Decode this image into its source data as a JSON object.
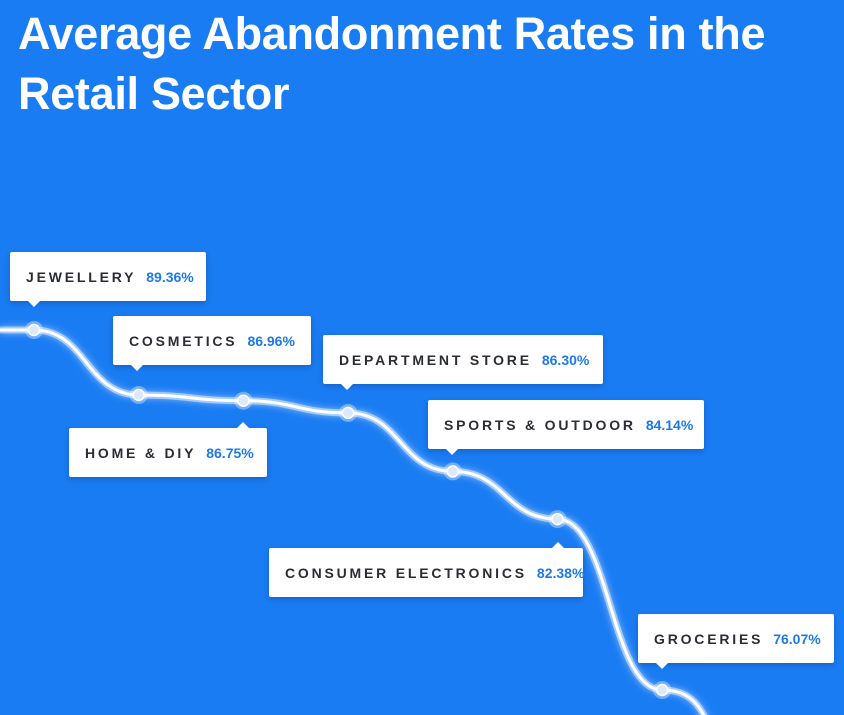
{
  "header": {
    "title": "Average Abandonment Rates in the Retail Sector"
  },
  "colors": {
    "background": "#1a7cf3",
    "line": "#ffffff",
    "label_bg": "#ffffff",
    "category_text": "#2b2d35",
    "value_text": "#1c7ae8"
  },
  "chart_data": {
    "type": "line",
    "title": "Average Abandonment Rates in the Retail Sector",
    "xlabel": "",
    "ylabel": "",
    "grid": false,
    "categories": [
      "JEWELLERY",
      "COSMETICS",
      "HOME & DIY",
      "DEPARTMENT STORE",
      "SPORTS & OUTDOOR",
      "CONSUMER ELECTRONICS",
      "GROCERIES"
    ],
    "values": [
      89.36,
      86.96,
      86.75,
      86.3,
      84.14,
      82.38,
      76.07
    ],
    "value_labels": [
      "89.36%",
      "86.96%",
      "86.75%",
      "86.30%",
      "84.14%",
      "82.38%",
      "76.07%"
    ]
  }
}
